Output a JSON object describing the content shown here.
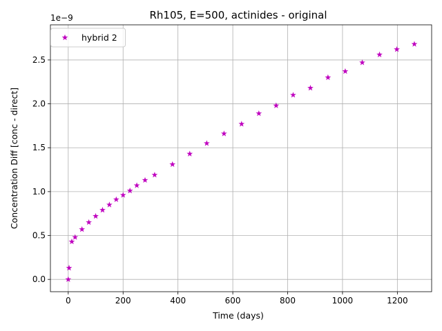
{
  "chart_data": {
    "type": "scatter",
    "title": "Rh105, E=500, actinides - original",
    "xlabel": "Time (days)",
    "ylabel": "Concentration Diff [conc - direct]",
    "y_offset_label": "1e−9",
    "xlim": [
      -65,
      1325
    ],
    "ylim": [
      -0.14,
      2.9
    ],
    "xticks": [
      0,
      200,
      400,
      600,
      800,
      1000,
      1200
    ],
    "xtick_labels": [
      "0",
      "200",
      "400",
      "600",
      "800",
      "1000",
      "1200"
    ],
    "yticks": [
      0.0,
      0.5,
      1.0,
      1.5,
      2.0,
      2.5
    ],
    "ytick_labels": [
      "0.0",
      "0.5",
      "1.0",
      "1.5",
      "2.0",
      "2.5"
    ],
    "grid": true,
    "legend_position": "upper-left",
    "series": [
      {
        "name": "hybrid 2",
        "color": "#bf00bf",
        "marker": "star",
        "x": [
          0,
          3,
          13,
          25,
          50,
          75,
          100,
          125,
          150,
          175,
          200,
          225,
          250,
          280,
          315,
          380,
          443,
          505,
          568,
          632,
          695,
          758,
          820,
          883,
          947,
          1010,
          1072,
          1135,
          1198,
          1262
        ],
        "y": [
          0.0,
          0.13,
          0.43,
          0.48,
          0.57,
          0.65,
          0.72,
          0.79,
          0.85,
          0.91,
          0.96,
          1.01,
          1.07,
          1.13,
          1.19,
          1.31,
          1.43,
          1.55,
          1.66,
          1.77,
          1.89,
          1.98,
          2.1,
          2.18,
          2.3,
          2.37,
          2.47,
          2.56,
          2.62,
          2.68
        ]
      }
    ]
  }
}
